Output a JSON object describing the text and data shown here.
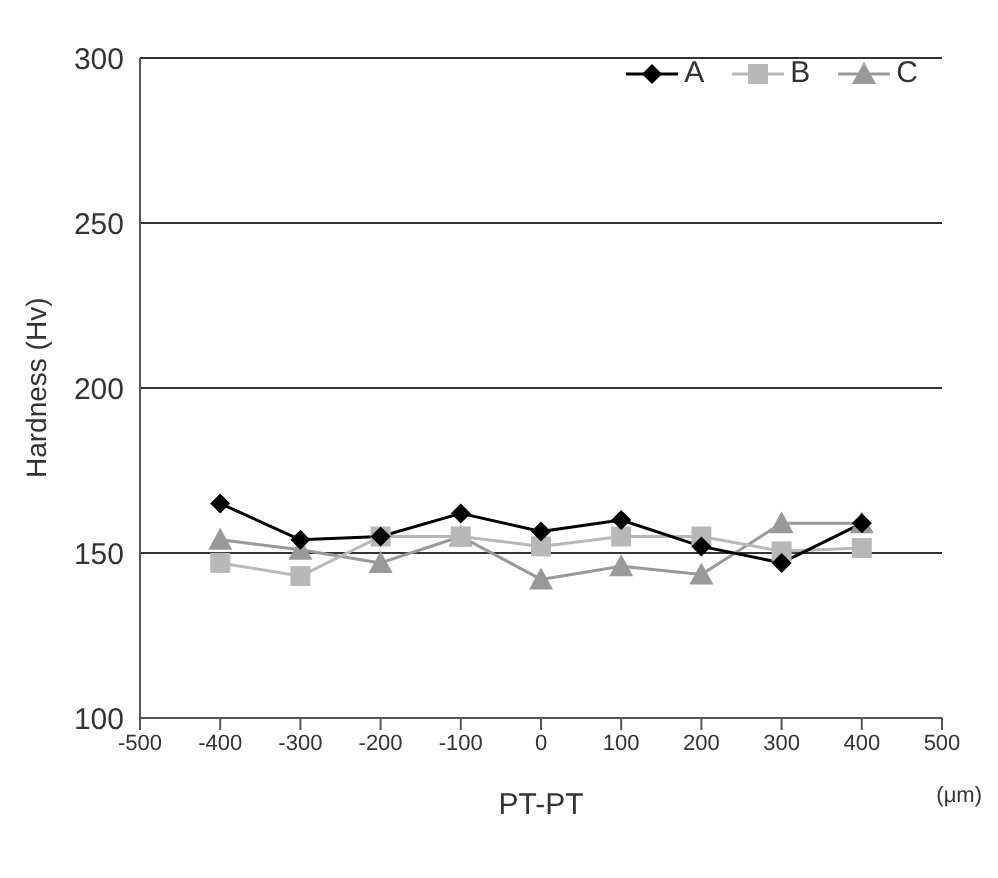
{
  "chart_data": {
    "type": "line",
    "xlabel": "PT-PT",
    "ylabel": "Hardness (Hv)",
    "annotations": [
      "(μm)"
    ],
    "x": [
      -400,
      -300,
      -200,
      -100,
      0,
      100,
      200,
      300,
      400
    ],
    "series": [
      {
        "name": "A",
        "color": "#000000",
        "marker": "diamond",
        "values": [
          165,
          154,
          155,
          162,
          156.5,
          160,
          152,
          147,
          159
        ]
      },
      {
        "name": "B",
        "color": "#b8b8b8",
        "marker": "square",
        "values": [
          147,
          143,
          155,
          155,
          152,
          155,
          155,
          150.5,
          151.5
        ]
      },
      {
        "name": "C",
        "color": "#999999",
        "marker": "triangle",
        "values": [
          154,
          151,
          147,
          155,
          142,
          146,
          143.5,
          159,
          159
        ]
      }
    ],
    "xlim": [
      -500,
      500
    ],
    "xticks": [
      -500,
      -400,
      -300,
      -200,
      -100,
      0,
      100,
      200,
      300,
      400,
      500
    ],
    "ylim": [
      100,
      300
    ],
    "yticks": [
      100,
      150,
      200,
      250,
      300
    ],
    "grid": "y",
    "legend": "top right"
  }
}
